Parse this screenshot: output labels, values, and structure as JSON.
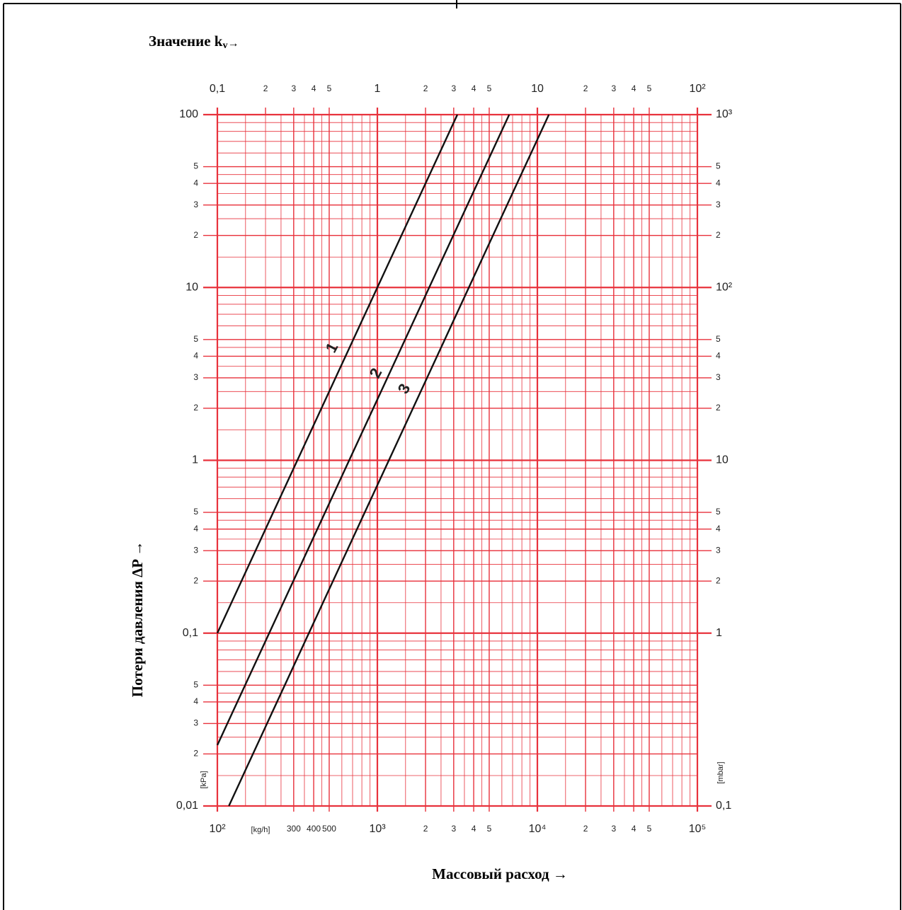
{
  "chart_data": {
    "type": "line",
    "x2_label": "Значение k",
    "x2_label_sub": "v",
    "x2_label_arrow": "→",
    "xlabel": "Массовый расход →",
    "ylabel": "Потери давления ΔP →",
    "x_unit": "[kg/h]",
    "y_unit": "[kPa]",
    "y2_unit": "[mbar]",
    "xlog": true,
    "ylog": true,
    "grid": true,
    "minor_grid": true,
    "xlim": [
      100,
      100000
    ],
    "xticks": [
      {
        "value": 100,
        "label": "10²"
      },
      300,
      400,
      500,
      {
        "value": 1000,
        "label": "10³"
      },
      {
        "value": 2000,
        "label": "2"
      },
      {
        "value": 3000,
        "label": "3"
      },
      {
        "value": 4000,
        "label": "4"
      },
      {
        "value": 5000,
        "label": "5"
      },
      {
        "value": 10000,
        "label": "10⁴"
      },
      {
        "value": 20000,
        "label": "2"
      },
      {
        "value": 30000,
        "label": "3"
      },
      {
        "value": 40000,
        "label": "4"
      },
      {
        "value": 50000,
        "label": "5"
      },
      {
        "value": 100000,
        "label": "10⁵"
      }
    ],
    "x2lim": [
      0.1,
      100
    ],
    "x2ticks": [
      {
        "value": 0.1,
        "label": "0,1"
      },
      {
        "value": 0.2,
        "label": "2"
      },
      {
        "value": 0.3,
        "label": "3"
      },
      {
        "value": 0.4,
        "label": "4"
      },
      {
        "value": 0.5,
        "label": "5"
      },
      1,
      2,
      3,
      4,
      5,
      10,
      {
        "value": 20,
        "label": "2"
      },
      {
        "value": 30,
        "label": "3"
      },
      {
        "value": 40,
        "label": "4"
      },
      {
        "value": 50,
        "label": "5"
      },
      {
        "value": 100,
        "label": "10²"
      }
    ],
    "ylim": [
      0.01,
      100
    ],
    "yticks": [
      {
        "value": 0.01,
        "label": "0,01"
      },
      {
        "value": 0.02,
        "label": "2"
      },
      {
        "value": 0.03,
        "label": "3"
      },
      {
        "value": 0.04,
        "label": "4"
      },
      {
        "value": 0.05,
        "label": "5"
      },
      {
        "value": 0.1,
        "label": "0,1"
      },
      {
        "value": 0.2,
        "label": "2"
      },
      {
        "value": 0.3,
        "label": "3"
      },
      {
        "value": 0.4,
        "label": "4"
      },
      {
        "value": 0.5,
        "label": "5"
      },
      1,
      2,
      3,
      4,
      5,
      10,
      {
        "value": 20,
        "label": "2"
      },
      {
        "value": 30,
        "label": "3"
      },
      {
        "value": 40,
        "label": "4"
      },
      {
        "value": 50,
        "label": "5"
      },
      100
    ],
    "y2lim": [
      0.1,
      1000
    ],
    "y2ticks": [
      {
        "value": 0.1,
        "label": "0,1"
      },
      1,
      2,
      3,
      4,
      5,
      10,
      {
        "value": 20,
        "label": "2"
      },
      {
        "value": 30,
        "label": "3"
      },
      {
        "value": 40,
        "label": "4"
      },
      {
        "value": 50,
        "label": "5"
      },
      {
        "value": 100,
        "label": "10²"
      },
      {
        "value": 200,
        "label": "2"
      },
      {
        "value": 300,
        "label": "3"
      },
      {
        "value": 400,
        "label": "4"
      },
      {
        "value": 500,
        "label": "5"
      },
      {
        "value": 1000,
        "label": "10³"
      }
    ],
    "series": [
      {
        "name": "1",
        "color": "#111111",
        "x": [
          100,
          3162
        ],
        "values": [
          0.1,
          100
        ]
      },
      {
        "name": "2",
        "color": "#111111",
        "x": [
          100,
          6667
        ],
        "values": [
          0.0225,
          100
        ]
      },
      {
        "name": "3",
        "color": "#111111",
        "x": [
          118,
          11800
        ],
        "values": [
          0.01,
          100
        ]
      }
    ]
  }
}
